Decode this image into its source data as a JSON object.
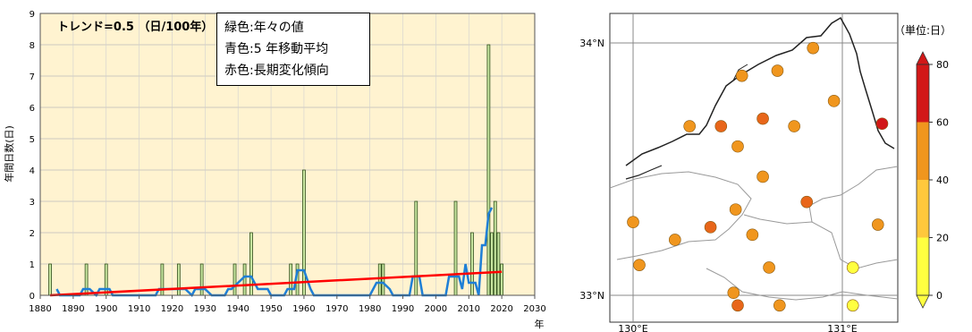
{
  "chart_data": [
    {
      "type": "bar+line",
      "title": "トレンド=0.5 （日/100年）",
      "ylabel": "年間日数(日)",
      "xlabel": "年",
      "xlim": [
        1880,
        2030
      ],
      "ylim": [
        0,
        9
      ],
      "x_ticks": [
        1880,
        1890,
        1900,
        1910,
        1920,
        1930,
        1940,
        1950,
        1960,
        1970,
        1980,
        1990,
        2000,
        2010,
        2020,
        2030
      ],
      "y_ticks": [
        0,
        1,
        2,
        3,
        4,
        5,
        6,
        7,
        8,
        9
      ],
      "legend": [
        "緑色:年々の値",
        "青色:5 年移動平均",
        "赤色:長期変化傾向"
      ],
      "colors": {
        "bars": "#c8e6a0",
        "bar_stroke": "#2e4d1a",
        "moving_avg": "#1f7fd6",
        "trend": "#ff0000",
        "background": "#fff3d0"
      },
      "bars": [
        {
          "x": 1883,
          "y": 1
        },
        {
          "x": 1894,
          "y": 1
        },
        {
          "x": 1900,
          "y": 1
        },
        {
          "x": 1917,
          "y": 1
        },
        {
          "x": 1922,
          "y": 1
        },
        {
          "x": 1929,
          "y": 1
        },
        {
          "x": 1939,
          "y": 1
        },
        {
          "x": 1942,
          "y": 1
        },
        {
          "x": 1944,
          "y": 2
        },
        {
          "x": 1956,
          "y": 1
        },
        {
          "x": 1958,
          "y": 1
        },
        {
          "x": 1960,
          "y": 4
        },
        {
          "x": 1983,
          "y": 1
        },
        {
          "x": 1984,
          "y": 1
        },
        {
          "x": 1994,
          "y": 3
        },
        {
          "x": 2006,
          "y": 3
        },
        {
          "x": 2011,
          "y": 2
        },
        {
          "x": 2016,
          "y": 8
        },
        {
          "x": 2017,
          "y": 2
        },
        {
          "x": 2018,
          "y": 3
        },
        {
          "x": 2019,
          "y": 2
        },
        {
          "x": 2020,
          "y": 1
        }
      ],
      "moving_average": [
        [
          1885,
          0.2
        ],
        [
          1886,
          0
        ],
        [
          1892,
          0
        ],
        [
          1893,
          0.2
        ],
        [
          1895,
          0.2
        ],
        [
          1897,
          0
        ],
        [
          1898,
          0.2
        ],
        [
          1901,
          0.2
        ],
        [
          1902,
          0
        ],
        [
          1915,
          0
        ],
        [
          1916,
          0.2
        ],
        [
          1919,
          0.2
        ],
        [
          1920,
          0.2
        ],
        [
          1922,
          0.2
        ],
        [
          1924,
          0.2
        ],
        [
          1926,
          0
        ],
        [
          1927,
          0.2
        ],
        [
          1930,
          0.2
        ],
        [
          1932,
          0
        ],
        [
          1936,
          0
        ],
        [
          1937,
          0.2
        ],
        [
          1938,
          0.2
        ],
        [
          1940,
          0.4
        ],
        [
          1942,
          0.6
        ],
        [
          1944,
          0.6
        ],
        [
          1946,
          0.2
        ],
        [
          1949,
          0.2
        ],
        [
          1950,
          0
        ],
        [
          1954,
          0
        ],
        [
          1955,
          0.2
        ],
        [
          1957,
          0.2
        ],
        [
          1958,
          0.8
        ],
        [
          1960,
          0.8
        ],
        [
          1962,
          0.2
        ],
        [
          1963,
          0
        ],
        [
          1980,
          0
        ],
        [
          1981,
          0.2
        ],
        [
          1982,
          0.4
        ],
        [
          1984,
          0.4
        ],
        [
          1986,
          0.2
        ],
        [
          1987,
          0
        ],
        [
          1992,
          0
        ],
        [
          1993,
          0.6
        ],
        [
          1995,
          0.6
        ],
        [
          1996,
          0
        ],
        [
          2003,
          0
        ],
        [
          2004,
          0.6
        ],
        [
          2007,
          0.6
        ],
        [
          2008,
          0.2
        ],
        [
          2009,
          1.0
        ],
        [
          2010,
          0.4
        ],
        [
          2012,
          0.4
        ],
        [
          2013,
          0
        ],
        [
          2014,
          1.6
        ],
        [
          2015,
          1.6
        ],
        [
          2016,
          2.6
        ],
        [
          2017,
          2.8
        ]
      ],
      "trend": [
        [
          1883,
          0
        ],
        [
          2020,
          0.75
        ]
      ]
    },
    {
      "type": "scatter-map",
      "x_ticks_labels": [
        "130°E",
        "131°E"
      ],
      "y_ticks_labels": [
        "34°N",
        "33°N"
      ],
      "colorbar": {
        "unit": "（単位:日）",
        "ticks": [
          0,
          20,
          40,
          60,
          80
        ],
        "colors": [
          "#ffff40",
          "#ffc83c",
          "#f0961e",
          "#e8661a",
          "#d21818"
        ]
      },
      "points": [
        {
          "lon": 130.86,
          "lat": 33.98,
          "v": 45
        },
        {
          "lon": 130.52,
          "lat": 33.87,
          "v": 45
        },
        {
          "lon": 130.69,
          "lat": 33.89,
          "v": 40
        },
        {
          "lon": 130.96,
          "lat": 33.77,
          "v": 40
        },
        {
          "lon": 130.62,
          "lat": 33.7,
          "v": 55
        },
        {
          "lon": 130.27,
          "lat": 33.67,
          "v": 45
        },
        {
          "lon": 130.42,
          "lat": 33.67,
          "v": 55
        },
        {
          "lon": 130.77,
          "lat": 33.67,
          "v": 45
        },
        {
          "lon": 131.19,
          "lat": 33.68,
          "v": 60
        },
        {
          "lon": 130.5,
          "lat": 33.59,
          "v": 45
        },
        {
          "lon": 130.62,
          "lat": 33.47,
          "v": 45
        },
        {
          "lon": 130.49,
          "lat": 33.34,
          "v": 45
        },
        {
          "lon": 130.83,
          "lat": 33.37,
          "v": 55
        },
        {
          "lon": 130.0,
          "lat": 33.29,
          "v": 45
        },
        {
          "lon": 130.2,
          "lat": 33.22,
          "v": 45
        },
        {
          "lon": 130.37,
          "lat": 33.27,
          "v": 55
        },
        {
          "lon": 130.57,
          "lat": 33.24,
          "v": 45
        },
        {
          "lon": 131.17,
          "lat": 33.28,
          "v": 45
        },
        {
          "lon": 130.03,
          "lat": 33.12,
          "v": 40
        },
        {
          "lon": 130.65,
          "lat": 33.11,
          "v": 45
        },
        {
          "lon": 131.05,
          "lat": 33.11,
          "v": 10
        },
        {
          "lon": 130.48,
          "lat": 33.01,
          "v": 40
        },
        {
          "lon": 130.5,
          "lat": 32.96,
          "v": 55
        },
        {
          "lon": 130.7,
          "lat": 32.96,
          "v": 45
        },
        {
          "lon": 131.05,
          "lat": 32.96,
          "v": 10
        }
      ]
    }
  ]
}
